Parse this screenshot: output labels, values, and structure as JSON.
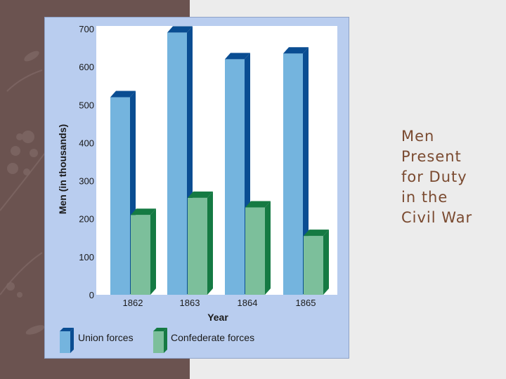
{
  "slide": {
    "title_lines": [
      "Men",
      "Present",
      "for Duty",
      "in the",
      "Civil War"
    ]
  },
  "colors": {
    "left_band": "#6b5350",
    "panel": "#b9cdef",
    "union_front": "#74b4de",
    "union_dark": "#0a4d92",
    "confed_front": "#7cbf9b",
    "confed_dark": "#157a43",
    "title_text": "#7a4a30"
  },
  "chart_data": {
    "type": "bar",
    "categories": [
      "1862",
      "1863",
      "1864",
      "1865"
    ],
    "series": [
      {
        "name": "Union forces",
        "values": [
          520,
          690,
          620,
          635
        ]
      },
      {
        "name": "Confederate forces",
        "values": [
          210,
          255,
          230,
          155
        ]
      }
    ],
    "xlabel": "Year",
    "ylabel": "Men (in thousands)",
    "ylim": [
      0,
      700
    ],
    "yticks": [
      0,
      100,
      200,
      300,
      400,
      500,
      600,
      700
    ],
    "legend": "bottom",
    "grid": false,
    "bar_style": "3d"
  }
}
